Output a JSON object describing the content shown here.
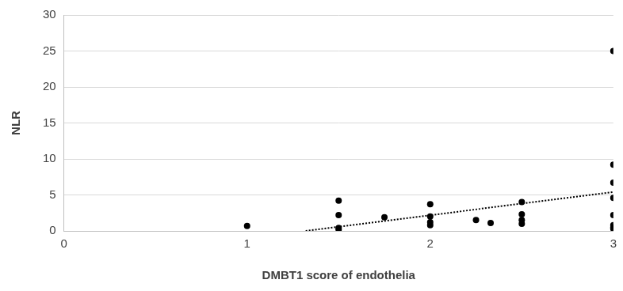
{
  "chart_data": {
    "type": "scatter",
    "x_label": "DMBT1 score of endothelia",
    "y_label": "NLR",
    "xlim": [
      0,
      3
    ],
    "xticks": [
      0,
      1,
      2,
      3
    ],
    "ylim": [
      0,
      30
    ],
    "yticks": [
      0,
      5,
      10,
      15,
      20,
      25,
      30
    ],
    "grid": "y",
    "series": [
      {
        "color": "#000000",
        "marker": "circle",
        "x": [
          1,
          1.5,
          1.5,
          1.5,
          1.5,
          1.75,
          2,
          2,
          2,
          2,
          2.25,
          2.33,
          2.5,
          2.5,
          2.5,
          2.5,
          3,
          3,
          3,
          3,
          3,
          3,
          3,
          3
        ],
        "values": [
          0.7,
          4.2,
          2.2,
          0.4,
          0.2,
          1.9,
          3.7,
          2.0,
          1.2,
          0.8,
          1.5,
          1.1,
          4.0,
          2.3,
          1.5,
          1.0,
          25,
          9.2,
          6.7,
          4.6,
          2.2,
          0.8,
          0.5,
          0.3
        ]
      },
      {
        "type": "line",
        "line_style": "dotted",
        "color": "#000000",
        "x": [
          1.32,
          3
        ],
        "values": [
          0,
          5.4
        ]
      }
    ]
  }
}
